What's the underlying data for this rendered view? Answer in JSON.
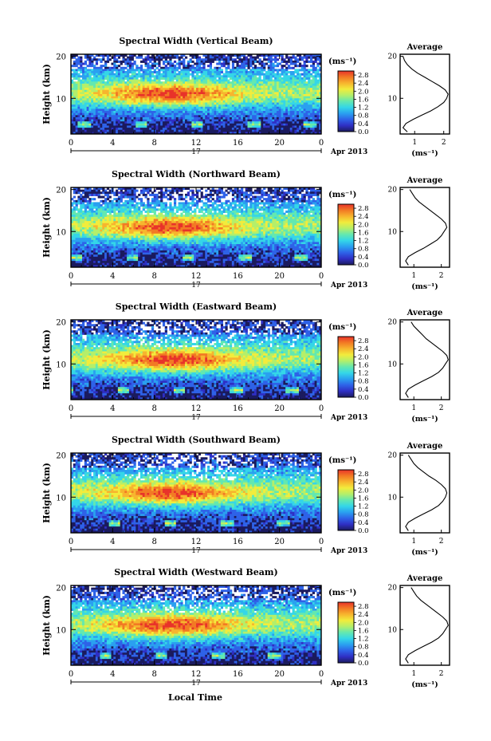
{
  "figure": {
    "xlabel": "Local Time",
    "date_suffix": "Apr 2013",
    "day_label": "17",
    "ylabel": "Height (km)",
    "colorbar_unit": "(ms⁻¹)",
    "avg_title": "Average",
    "avg_xlabel": "(ms⁻¹)",
    "palette": [
      "#1b1b5e",
      "#2f2fc4",
      "#2e62e8",
      "#2aa0f0",
      "#34d6e8",
      "#63e8b0",
      "#b4ef6a",
      "#f2ec3c",
      "#f7b52e",
      "#f27a24",
      "#e8332a"
    ]
  },
  "chart_data": [
    {
      "type": "heatmap",
      "title": "Spectral Width (Vertical Beam)",
      "xlabel": "Local Time",
      "ylabel": "Height (km)",
      "x_ticks": [
        "0",
        "4",
        "8",
        "12",
        "16",
        "20",
        "0"
      ],
      "xlim": [
        0,
        24
      ],
      "y_ticks": [
        "20",
        "10"
      ],
      "ylim": [
        1.5,
        20.5
      ],
      "colorbar": {
        "label": "(ms⁻¹)",
        "ticks": [
          "2.8",
          "2.4",
          "2.0",
          "1.6",
          "1.2",
          "0.8",
          "0.4",
          "0.0"
        ],
        "range": [
          0,
          3.0
        ]
      },
      "average_profile": {
        "title": "Average",
        "xlabel": "(ms⁻¹)",
        "x_ticks": [
          "1",
          "2"
        ],
        "xlim": [
          0.5,
          2.2
        ],
        "heights": [
          2,
          3,
          4,
          5,
          6,
          7,
          8,
          9,
          10,
          11,
          12,
          13,
          14,
          15,
          16,
          17,
          18,
          19,
          20
        ],
        "values": [
          0.75,
          0.6,
          0.7,
          0.95,
          1.25,
          1.55,
          1.8,
          2.0,
          2.1,
          2.15,
          2.05,
          1.85,
          1.6,
          1.35,
          1.1,
          0.9,
          0.75,
          0.65,
          0.6
        ]
      }
    },
    {
      "type": "heatmap",
      "title": "Spectral Width (Northward Beam)",
      "xlabel": "Local Time",
      "ylabel": "Height (km)",
      "x_ticks": [
        "0",
        "4",
        "8",
        "12",
        "16",
        "20",
        "0"
      ],
      "xlim": [
        0,
        24
      ],
      "y_ticks": [
        "20",
        "10"
      ],
      "ylim": [
        1.5,
        20.5
      ],
      "colorbar": {
        "label": "(ms⁻¹)",
        "ticks": [
          "2.8",
          "2.4",
          "2.0",
          "1.6",
          "1.2",
          "0.8",
          "0.4",
          "0.0"
        ],
        "range": [
          0,
          3.0
        ]
      },
      "average_profile": {
        "title": "Average",
        "xlabel": "(ms⁻¹)",
        "x_ticks": [
          "1",
          "2"
        ],
        "xlim": [
          0.5,
          2.3
        ],
        "heights": [
          2,
          3,
          4,
          5,
          6,
          7,
          8,
          9,
          10,
          11,
          12,
          13,
          14,
          15,
          16,
          17,
          18,
          19,
          20
        ],
        "values": [
          0.8,
          0.7,
          0.8,
          1.05,
          1.35,
          1.6,
          1.85,
          2.0,
          2.1,
          2.2,
          2.15,
          2.0,
          1.8,
          1.6,
          1.4,
          1.2,
          1.05,
          0.95,
          0.85
        ]
      }
    },
    {
      "type": "heatmap",
      "title": "Spectral Width (Eastward Beam)",
      "xlabel": "Local Time",
      "ylabel": "Height (km)",
      "x_ticks": [
        "0",
        "4",
        "8",
        "12",
        "16",
        "20",
        "0"
      ],
      "xlim": [
        0,
        24
      ],
      "y_ticks": [
        "20",
        "10"
      ],
      "ylim": [
        1.5,
        20.5
      ],
      "colorbar": {
        "label": "(ms⁻¹)",
        "ticks": [
          "2.8",
          "2.4",
          "2.0",
          "1.6",
          "1.2",
          "0.8",
          "0.4",
          "0.0"
        ],
        "range": [
          0,
          3.0
        ]
      },
      "average_profile": {
        "title": "Average",
        "xlabel": "(ms⁻¹)",
        "x_ticks": [
          "1",
          "2"
        ],
        "xlim": [
          0.5,
          2.3
        ],
        "heights": [
          2,
          3,
          4,
          5,
          6,
          7,
          8,
          9,
          10,
          11,
          12,
          13,
          14,
          15,
          16,
          17,
          18,
          19,
          20
        ],
        "values": [
          0.8,
          0.7,
          0.8,
          1.05,
          1.35,
          1.65,
          1.9,
          2.05,
          2.15,
          2.25,
          2.2,
          2.05,
          1.85,
          1.65,
          1.45,
          1.3,
          1.15,
          1.0,
          0.9
        ]
      }
    },
    {
      "type": "heatmap",
      "title": "Spectral Width (Southward Beam)",
      "xlabel": "Local Time",
      "ylabel": "Height (km)",
      "x_ticks": [
        "0",
        "4",
        "8",
        "12",
        "16",
        "20",
        "0"
      ],
      "xlim": [
        0,
        24
      ],
      "y_ticks": [
        "20",
        "10"
      ],
      "ylim": [
        1.5,
        20.5
      ],
      "colorbar": {
        "label": "(ms⁻¹)",
        "ticks": [
          "2.8",
          "2.4",
          "2.0",
          "1.6",
          "1.2",
          "0.8",
          "0.4",
          "0.0"
        ],
        "range": [
          0,
          3.0
        ]
      },
      "average_profile": {
        "title": "Average",
        "xlabel": "(ms⁻¹)",
        "x_ticks": [
          "1",
          "2"
        ],
        "xlim": [
          0.5,
          2.3
        ],
        "heights": [
          2,
          3,
          4,
          5,
          6,
          7,
          8,
          9,
          10,
          11,
          12,
          13,
          14,
          15,
          16,
          17,
          18,
          19,
          20
        ],
        "values": [
          0.8,
          0.7,
          0.8,
          1.05,
          1.35,
          1.65,
          1.9,
          2.05,
          2.15,
          2.2,
          2.15,
          2.0,
          1.8,
          1.55,
          1.35,
          1.15,
          1.0,
          0.9,
          0.8
        ]
      }
    },
    {
      "type": "heatmap",
      "title": "Spectral Width (Westward Beam)",
      "xlabel": "Local Time",
      "ylabel": "Height (km)",
      "x_ticks": [
        "0",
        "4",
        "8",
        "12",
        "16",
        "20",
        "0"
      ],
      "xlim": [
        0,
        24
      ],
      "y_ticks": [
        "20",
        "10"
      ],
      "ylim": [
        1.5,
        20.5
      ],
      "colorbar": {
        "label": "(ms⁻¹)",
        "ticks": [
          "2.8",
          "2.4",
          "2.0",
          "1.6",
          "1.2",
          "0.8",
          "0.4",
          "0.0"
        ],
        "range": [
          0,
          3.0
        ]
      },
      "average_profile": {
        "title": "Average",
        "xlabel": "(ms⁻¹)",
        "x_ticks": [
          "1",
          "2"
        ],
        "xlim": [
          0.5,
          2.3
        ],
        "heights": [
          2,
          3,
          4,
          5,
          6,
          7,
          8,
          9,
          10,
          11,
          12,
          13,
          14,
          15,
          16,
          17,
          18,
          19,
          20
        ],
        "values": [
          0.8,
          0.7,
          0.8,
          1.05,
          1.35,
          1.65,
          1.9,
          2.05,
          2.15,
          2.25,
          2.2,
          2.05,
          1.85,
          1.65,
          1.45,
          1.25,
          1.1,
          1.0,
          0.9
        ]
      }
    }
  ]
}
